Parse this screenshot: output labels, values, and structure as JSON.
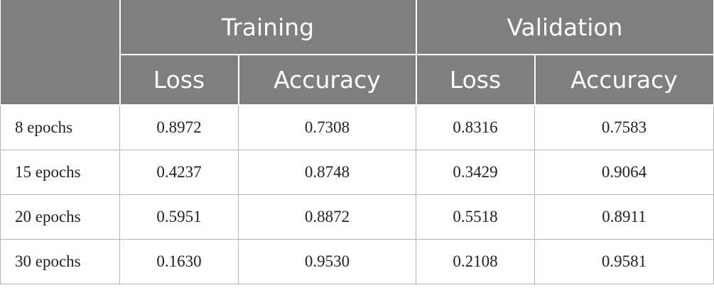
{
  "table": {
    "groups": [
      "Training",
      "Validation"
    ],
    "columns": [
      "Loss",
      "Accuracy",
      "Loss",
      "Accuracy"
    ],
    "rows": [
      [
        "8 epochs",
        "0.8972",
        "0.7308",
        "0.8316",
        "0.7583"
      ],
      [
        "15 epochs",
        "0.4237",
        "0.8748",
        "0.3429",
        "0.9064"
      ],
      [
        "20 epochs",
        "0.5951",
        "0.8872",
        "0.5518",
        "0.8911"
      ],
      [
        "30 epochs",
        "0.1630",
        "0.9530",
        "0.2108",
        "0.9581"
      ]
    ]
  }
}
